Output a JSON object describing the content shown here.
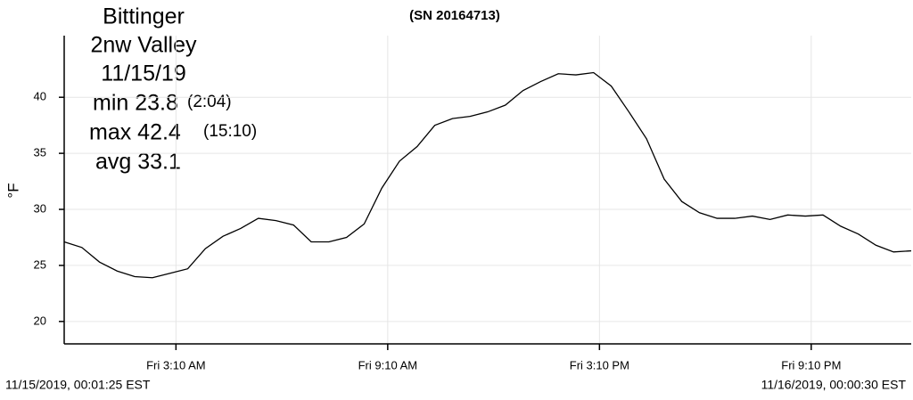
{
  "chart_data": {
    "type": "line",
    "title": "(SN 20164713)",
    "y_label": "°F",
    "station": [
      "Bittinger",
      "2nw Valley",
      "11/15/19"
    ],
    "stats": [
      {
        "label": "min 23.8",
        "time": "(2:04)"
      },
      {
        "label": "max 42.4",
        "time": "(15:10)"
      },
      {
        "label": "avg 33.1"
      }
    ],
    "start_label": "11/15/2019, 00:01:25 EST",
    "end_label": "11/16/2019, 00:00:30 EST",
    "x": [
      0,
      0.5,
      1,
      1.5,
      2,
      2.5,
      3,
      3.5,
      4,
      4.5,
      5,
      5.5,
      6,
      6.5,
      7,
      7.5,
      8,
      8.5,
      9,
      9.5,
      10,
      10.5,
      11,
      11.5,
      12,
      12.5,
      13,
      13.5,
      14,
      14.5,
      15,
      15.5,
      16,
      16.5,
      17,
      17.5,
      18,
      18.5,
      19,
      19.5,
      20,
      20.5,
      21,
      21.5,
      22,
      22.5,
      23,
      23.5,
      24
    ],
    "series": [
      {
        "color": "#000000",
        "values": [
          27.1,
          26.6,
          25.3,
          24.5,
          24.0,
          23.9,
          24.3,
          24.7,
          26.5,
          27.6,
          28.3,
          29.2,
          29.0,
          28.6,
          27.1,
          27.1,
          27.5,
          28.7,
          31.9,
          34.3,
          35.6,
          37.5,
          38.1,
          38.3,
          38.7,
          39.3,
          40.6,
          41.4,
          42.1,
          42.0,
          42.2,
          41.0,
          38.7,
          36.3,
          32.7,
          30.7,
          29.7,
          29.2,
          29.2,
          29.4,
          29.1,
          29.5,
          29.4,
          29.5,
          28.5,
          27.8,
          26.8,
          26.2,
          26.3
        ]
      }
    ],
    "xlim": [
      0,
      24
    ],
    "xticks": [
      {
        "value": 3.1667,
        "label": "Fri 3:10 AM"
      },
      {
        "value": 9.1667,
        "label": "Fri 9:10 AM"
      },
      {
        "value": 15.1667,
        "label": "Fri 3:10 PM"
      },
      {
        "value": 21.1667,
        "label": "Fri 9:10 PM"
      }
    ],
    "ylim": [
      18,
      45.5
    ],
    "yticks": [
      20,
      25,
      30,
      35,
      40
    ],
    "grid": true
  }
}
